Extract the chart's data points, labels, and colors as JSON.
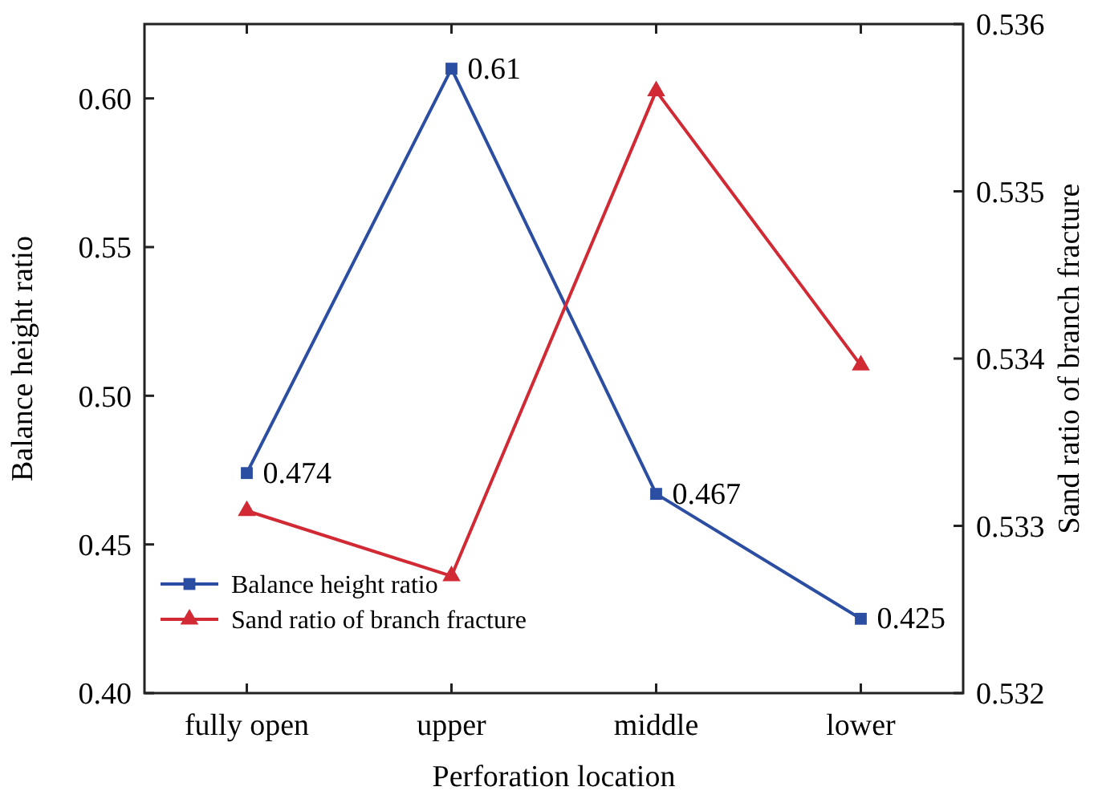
{
  "chart_data": {
    "type": "line",
    "xlabel": "Perforation location",
    "ylabel": "Balance height ratio",
    "y2label": "Sand ratio of branch fracture",
    "categories": [
      "fully open",
      "upper",
      "middle",
      "lower"
    ],
    "series": [
      {
        "name": "Balance height ratio",
        "color": "#2b4ea2",
        "values": [
          0.474,
          0.61,
          0.467,
          0.425
        ],
        "marker": "square",
        "value_labels": [
          "0.474",
          "0.61",
          "0.467",
          "0.425"
        ]
      },
      {
        "name": "Sand ratio of branch fracture",
        "color": "#d12a35",
        "values": [
          0.53309,
          0.5327,
          0.5356,
          0.53396
        ],
        "marker": "triangle",
        "axis": "y2"
      }
    ],
    "ylim": [
      0.4,
      0.625
    ],
    "yticks": [
      {
        "value": 0.4,
        "label": "0.40"
      },
      0.45,
      {
        "value": 0.5,
        "label": "0.50"
      },
      0.55,
      {
        "value": 0.6,
        "label": "0.60"
      }
    ],
    "y2lim": [
      0.532,
      0.536
    ],
    "y2ticks": [
      0.532,
      0.533,
      0.534,
      0.535,
      0.536
    ],
    "grid": false,
    "legend": "bottom left",
    "line_style": "solid"
  }
}
